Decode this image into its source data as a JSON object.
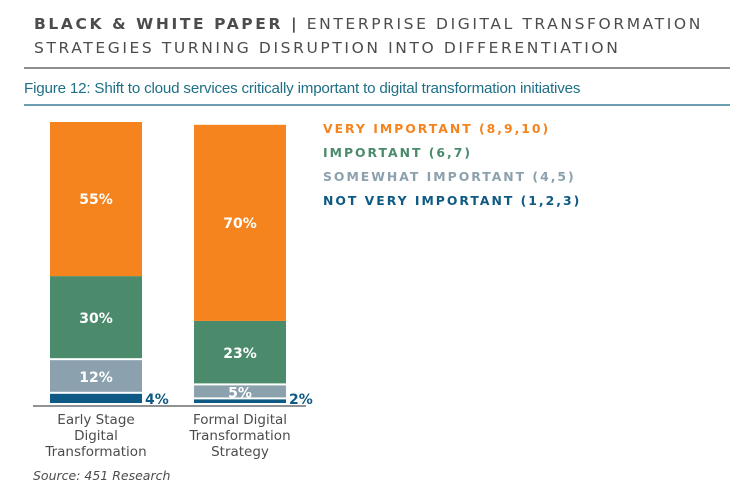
{
  "header": {
    "brand": "BLACK & WHITE PAPER |",
    "line1_rest": " ENTERPRISE DIGITAL TRANSFORMATION",
    "line2": "STRATEGIES TURNING DISRUPTION INTO DIFFERENTIATION"
  },
  "source": "Source: 451 Research",
  "chart_data": {
    "type": "bar",
    "stacked": true,
    "title": "Figure 12: Shift to cloud services critically important to digital transformation initiatives",
    "categories": [
      "Early Stage Digital Transformation",
      "Formal Digital Transformation Strategy"
    ],
    "category_lines": [
      [
        "Early Stage",
        "Digital",
        "Transformation"
      ],
      [
        "Formal Digital",
        "Transformation",
        "Strategy"
      ]
    ],
    "series": [
      {
        "name": "NOT VERY IMPORTANT (1,2,3)",
        "color": "#0f5a84",
        "values": [
          4,
          2
        ],
        "labels": [
          "4%",
          "2%"
        ],
        "label_position": "outside-right"
      },
      {
        "name": "SOMEWHAT IMPORTANT (4,5)",
        "color": "#8ba1ae",
        "values": [
          12,
          5
        ],
        "labels": [
          "12%",
          "5%"
        ]
      },
      {
        "name": "IMPORTANT (6,7)",
        "color": "#4b8b6c",
        "values": [
          30,
          23
        ],
        "labels": [
          "30%",
          "23%"
        ]
      },
      {
        "name": "VERY IMPORTANT (8,9,10)",
        "color": "#f5841f",
        "values": [
          55,
          70
        ],
        "labels": [
          "55%",
          "70%"
        ]
      }
    ],
    "legend": {
      "placement": "right",
      "order": [
        "VERY IMPORTANT (8,9,10)",
        "IMPORTANT (6,7)",
        "SOMEWHAT IMPORTANT (4,5)",
        "NOT VERY IMPORTANT (1,2,3)"
      ],
      "colors": [
        "#f5841f",
        "#4b8b6c",
        "#8ba1ae",
        "#0f5a84"
      ]
    },
    "xlabel": "",
    "ylabel": "",
    "ylim": [
      0,
      101
    ],
    "grid": false
  }
}
